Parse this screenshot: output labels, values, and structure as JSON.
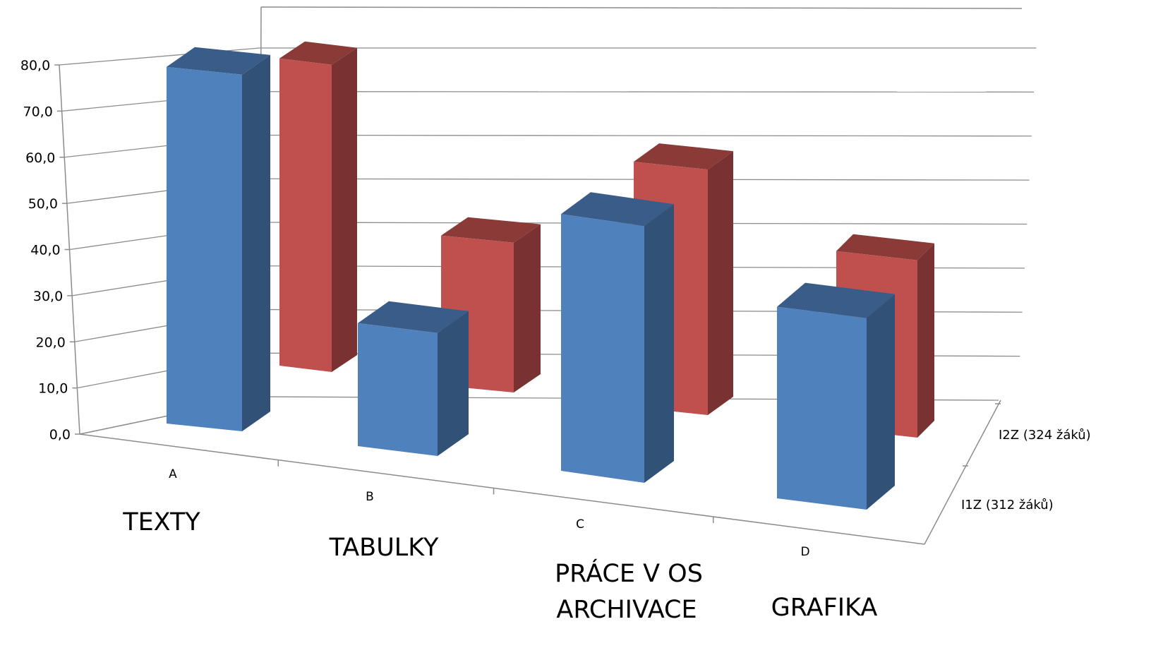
{
  "chart_data": {
    "type": "bar",
    "title": "",
    "xlabel": "",
    "ylabel": "",
    "ylim": [
      0,
      80
    ],
    "yticks": [
      "0,0",
      "10,0",
      "20,0",
      "30,0",
      "40,0",
      "50,0",
      "60,0",
      "70,0",
      "80,0"
    ],
    "categories": [
      "A",
      "B",
      "C",
      "D"
    ],
    "category_notes": [
      [
        "TEXTY"
      ],
      [
        "TABULKY"
      ],
      [
        "PRÁCE V OS",
        "ARCHIVACE"
      ],
      [
        "GRAFIKA"
      ]
    ],
    "series": [
      {
        "name": "I1Z (312 žáků)",
        "values": [
          75.4,
          26.0,
          54.3,
          40.5
        ],
        "color": "#4F81BD"
      },
      {
        "name": "I2Z (324 žáků)",
        "values": [
          61.3,
          29.9,
          49.0,
          35.4
        ],
        "color": "#C0504D"
      }
    ],
    "grid": true,
    "legend": "none"
  }
}
